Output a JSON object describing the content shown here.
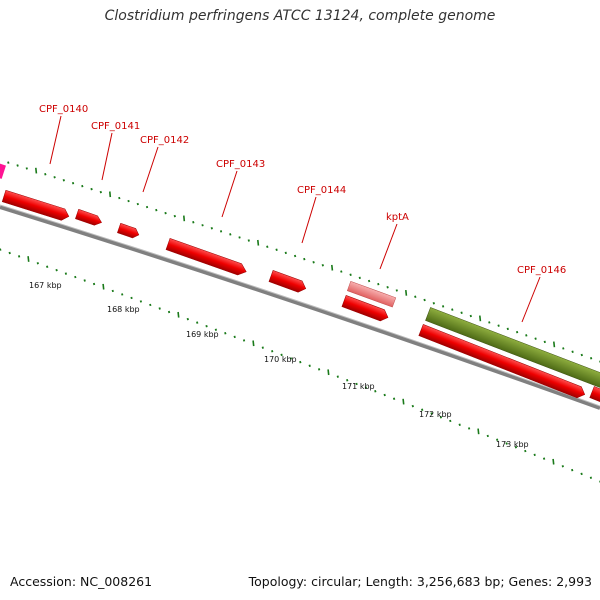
{
  "title": "Clostridium perfringens ATCC 13124, complete genome",
  "accession": "Accession: NC_008261",
  "summary": "Topology: circular; Length: 3,256,683 bp; Genes: 2,993",
  "colors": {
    "gene": "#ee0000",
    "gene_highlight": "#f08080",
    "feature_green": "#6b8e23",
    "backbone": "#808080",
    "ticks": "#1a7a1a",
    "label": "#cc0000",
    "magenta": "#ff1493"
  },
  "gene_labels": [
    {
      "id": "CPF_0140",
      "text": "CPF_0140"
    },
    {
      "id": "CPF_0141",
      "text": "CPF_0141"
    },
    {
      "id": "CPF_0142",
      "text": "CPF_0142"
    },
    {
      "id": "CPF_0143",
      "text": "CPF_0143"
    },
    {
      "id": "CPF_0144",
      "text": "CPF_0144"
    },
    {
      "id": "kptA",
      "text": "kptA"
    },
    {
      "id": "CPF_0146",
      "text": "CPF_0146"
    }
  ],
  "kbp_ticks": [
    "167 kbp",
    "168 kbp",
    "169 kbp",
    "170 kbp",
    "171 kbp",
    "172 kbp",
    "173 kbp"
  ]
}
